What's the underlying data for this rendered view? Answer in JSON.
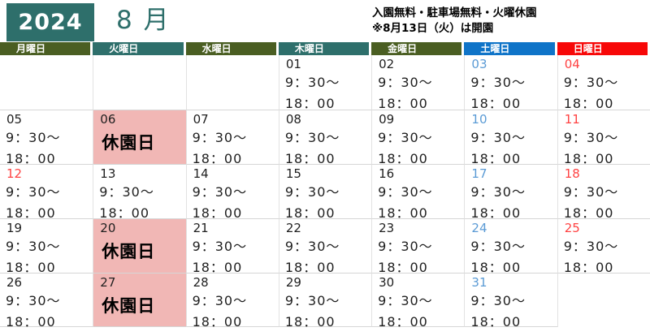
{
  "header": {
    "year": "2024",
    "month": "8 月",
    "notice_line1": "入園無料・駐車場無料・火曜休園",
    "notice_line2": "※8月13日（火）は開園"
  },
  "colors": {
    "teal": "#2e6f6b",
    "olive": "#4a5e22",
    "saturday_blue": "#0f74c8",
    "sunday_red": "#f70808",
    "date_blue": "#5b9bd5",
    "date_red": "#ff4242",
    "closed_pink": "#f1b7b5"
  },
  "labels": {
    "closed": "休園日"
  },
  "times": {
    "open": "9：30～",
    "close": "18：00"
  },
  "weekdays": [
    {
      "name": "monday",
      "label": "月曜日",
      "color": "olive"
    },
    {
      "name": "tuesday",
      "label": "火曜日",
      "color": "teal"
    },
    {
      "name": "wednesday",
      "label": "水曜日",
      "color": "olive"
    },
    {
      "name": "thursday",
      "label": "木曜日",
      "color": "teal"
    },
    {
      "name": "friday",
      "label": "金曜日",
      "color": "olive"
    },
    {
      "name": "saturday",
      "label": "土曜日",
      "color": "saturday_blue"
    },
    {
      "name": "sunday",
      "label": "日曜日",
      "color": "sunday_red"
    }
  ],
  "weeks": [
    [
      null,
      null,
      null,
      {
        "date": "01",
        "status": "open"
      },
      {
        "date": "02",
        "status": "open"
      },
      {
        "date": "03",
        "status": "open",
        "date_color": "date_blue"
      },
      {
        "date": "04",
        "status": "open",
        "date_color": "date_red"
      }
    ],
    [
      {
        "date": "05",
        "status": "open"
      },
      {
        "date": "06",
        "status": "closed"
      },
      {
        "date": "07",
        "status": "open"
      },
      {
        "date": "08",
        "status": "open"
      },
      {
        "date": "09",
        "status": "open"
      },
      {
        "date": "10",
        "status": "open",
        "date_color": "date_blue"
      },
      {
        "date": "11",
        "status": "open",
        "date_color": "date_red"
      }
    ],
    [
      {
        "date": "12",
        "status": "open",
        "date_color": "date_red"
      },
      {
        "date": "13",
        "status": "open"
      },
      {
        "date": "14",
        "status": "open"
      },
      {
        "date": "15",
        "status": "open"
      },
      {
        "date": "16",
        "status": "open"
      },
      {
        "date": "17",
        "status": "open",
        "date_color": "date_blue"
      },
      {
        "date": "18",
        "status": "open",
        "date_color": "date_red"
      }
    ],
    [
      {
        "date": "19",
        "status": "open"
      },
      {
        "date": "20",
        "status": "closed"
      },
      {
        "date": "21",
        "status": "open"
      },
      {
        "date": "22",
        "status": "open"
      },
      {
        "date": "23",
        "status": "open"
      },
      {
        "date": "24",
        "status": "open",
        "date_color": "date_blue"
      },
      {
        "date": "25",
        "status": "open",
        "date_color": "date_red"
      }
    ],
    [
      {
        "date": "26",
        "status": "open"
      },
      {
        "date": "27",
        "status": "closed"
      },
      {
        "date": "28",
        "status": "open"
      },
      {
        "date": "29",
        "status": "open"
      },
      {
        "date": "30",
        "status": "open"
      },
      {
        "date": "31",
        "status": "open",
        "date_color": "date_blue"
      },
      null
    ]
  ]
}
